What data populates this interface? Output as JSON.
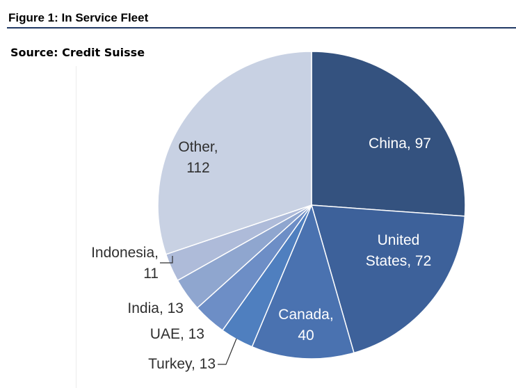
{
  "figure": {
    "title": "Figure 1: In Service Fleet",
    "source": "Source: Credit Suisse"
  },
  "chart_data": {
    "type": "pie",
    "title": "Figure 1: In Service Fleet",
    "start_angle": "12 o'clock, clockwise",
    "slices": [
      {
        "name": "China",
        "value": 97,
        "color": "#34527f",
        "label_lines": [
          "China, 97"
        ],
        "label_color": "#ffffff"
      },
      {
        "name": "United States",
        "value": 72,
        "color": "#3d619a",
        "label_lines": [
          "United",
          "States, 72"
        ],
        "label_color": "#ffffff"
      },
      {
        "name": "Canada",
        "value": 40,
        "color": "#4a72b0",
        "label_lines": [
          "Canada,",
          "40"
        ],
        "label_color": "#ffffff"
      },
      {
        "name": "Turkey",
        "value": 13,
        "color": "#4f7fbf",
        "label_lines": [
          "Turkey, 13"
        ],
        "label_color": "#2f2f2f"
      },
      {
        "name": "UAE",
        "value": 13,
        "color": "#6d8ec6",
        "label_lines": [
          "UAE, 13"
        ],
        "label_color": "#2f2f2f"
      },
      {
        "name": "India",
        "value": 13,
        "color": "#8fa6cf",
        "label_lines": [
          "India, 13"
        ],
        "label_color": "#2f2f2f"
      },
      {
        "name": "Indonesia",
        "value": 11,
        "color": "#aebbd9",
        "label_lines": [
          "Indonesia,",
          "11"
        ],
        "label_color": "#2f2f2f"
      },
      {
        "name": "Other",
        "value": 112,
        "color": "#c8d1e3",
        "label_lines": [
          "Other,",
          "112"
        ],
        "label_color": "#2f2f2f"
      }
    ],
    "grid": false,
    "legend": "none"
  }
}
